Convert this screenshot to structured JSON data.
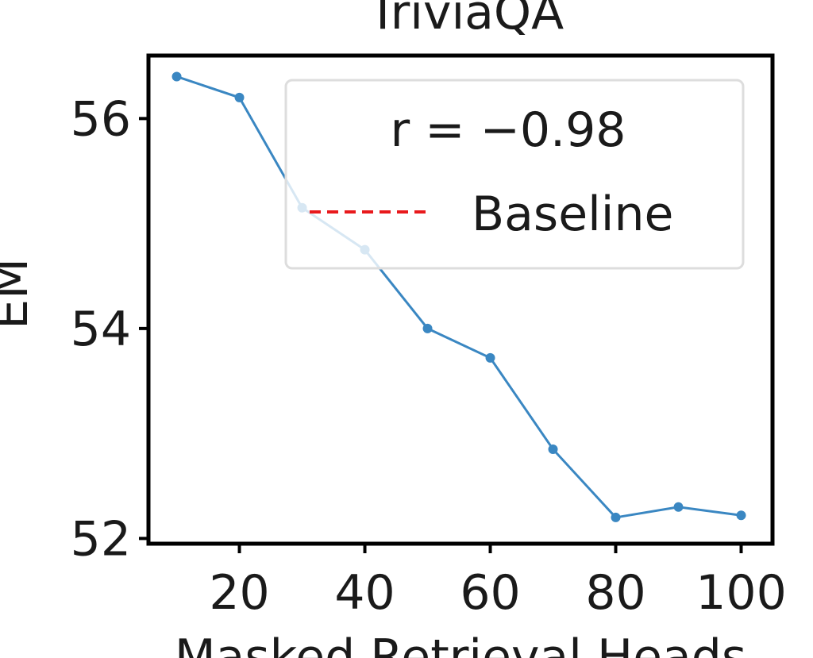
{
  "chart_data": {
    "type": "line",
    "title": "TriviaQA",
    "xlabel": "Masked Retrieval Heads",
    "ylabel": "EM",
    "xlim": [
      5.5,
      105
    ],
    "ylim": [
      51.95,
      56.6
    ],
    "xticks": [
      20,
      40,
      60,
      80,
      100
    ],
    "yticks": [
      52,
      54,
      56
    ],
    "grid": false,
    "legend_position": "upper-right",
    "legend": {
      "annotation": "r = −0.98",
      "entries": [
        "Baseline"
      ]
    },
    "series": [
      {
        "name": "",
        "color": "#3a87c2",
        "x": [
          10,
          20,
          30,
          40,
          50,
          60,
          70,
          80,
          90,
          100
        ],
        "y": [
          56.4,
          56.2,
          55.15,
          54.75,
          54.0,
          53.72,
          52.85,
          52.2,
          52.3,
          52.22
        ]
      }
    ],
    "baseline": {
      "name": "Baseline",
      "color": "#e8191c",
      "style": "dashed"
    }
  }
}
